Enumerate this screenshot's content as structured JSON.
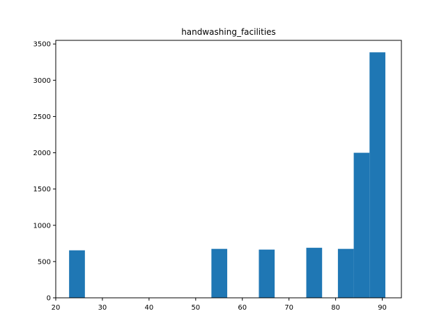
{
  "chart_data": {
    "type": "bar",
    "title": "handwashing_facilities",
    "xlabel": "",
    "ylabel": "",
    "bar_color": "#1f77b4",
    "xlim": [
      20,
      94.1
    ],
    "ylim": [
      0,
      3550
    ],
    "bins": [
      {
        "start": 22.86,
        "end": 26.25,
        "count": 655
      },
      {
        "start": 53.37,
        "end": 56.76,
        "count": 675
      },
      {
        "start": 63.54,
        "end": 66.93,
        "count": 665
      },
      {
        "start": 73.71,
        "end": 77.1,
        "count": 690
      },
      {
        "start": 80.49,
        "end": 83.88,
        "count": 675
      },
      {
        "start": 83.88,
        "end": 87.27,
        "count": 2000
      },
      {
        "start": 87.27,
        "end": 90.66,
        "count": 3385
      }
    ],
    "x_ticks": [
      {
        "value": 20,
        "label": "20"
      },
      {
        "value": 30,
        "label": "30"
      },
      {
        "value": 40,
        "label": "40"
      },
      {
        "value": 50,
        "label": "50"
      },
      {
        "value": 60,
        "label": "60"
      },
      {
        "value": 70,
        "label": "70"
      },
      {
        "value": 80,
        "label": "80"
      },
      {
        "value": 90,
        "label": "90"
      }
    ],
    "y_ticks": [
      {
        "value": 0,
        "label": "0"
      },
      {
        "value": 500,
        "label": "500"
      },
      {
        "value": 1000,
        "label": "1000"
      },
      {
        "value": 1500,
        "label": "1500"
      },
      {
        "value": 2000,
        "label": "2000"
      },
      {
        "value": 2500,
        "label": "2500"
      },
      {
        "value": 3000,
        "label": "3000"
      },
      {
        "value": 3500,
        "label": "3500"
      }
    ],
    "grid": false,
    "legend": "none"
  }
}
